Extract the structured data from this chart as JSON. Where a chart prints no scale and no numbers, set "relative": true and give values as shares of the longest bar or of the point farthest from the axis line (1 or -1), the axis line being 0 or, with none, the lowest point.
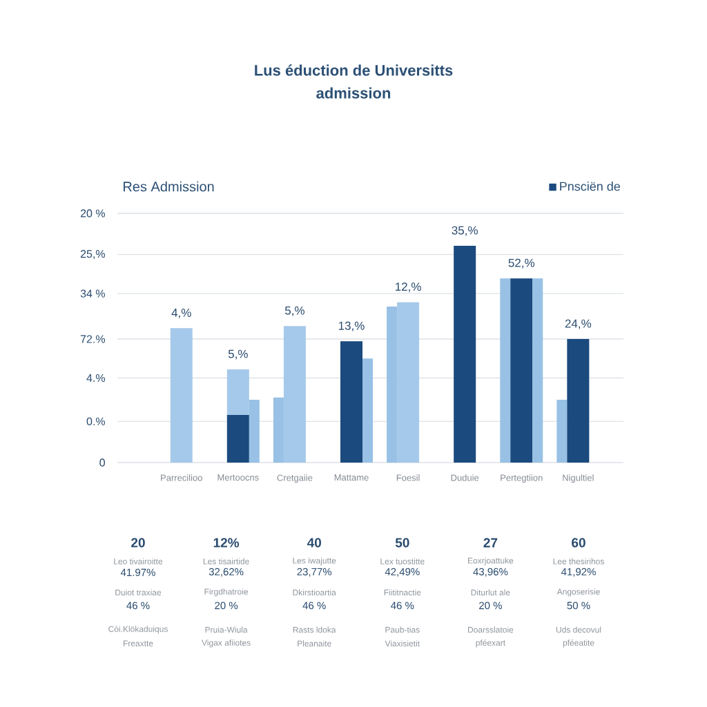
{
  "chart_data": {
    "type": "bar",
    "title": "Lus éduction de Universitts admission",
    "subtitle": "Res Admission",
    "relative": true,
    "categories": [
      "Parrecilioo",
      "Mertoocns",
      "Cretgaiie",
      "Mattame",
      "Foesil",
      "Duduie",
      "Pertegtiion",
      "Nigultiel"
    ],
    "series": [
      {
        "color": "#98c1e5",
        "values": [
          null,
          null,
          0.3,
          null,
          0.72,
          null,
          0.85,
          0.29
        ]
      },
      {
        "color": "#a5c9ea",
        "values": [
          0.62,
          0.43,
          0.63,
          null,
          0.74,
          null,
          null,
          null
        ]
      },
      {
        "name": "Pnsciën de",
        "color": "#1b4a7e",
        "values": [
          null,
          0.22,
          null,
          0.56,
          null,
          1,
          0.85,
          0.57
        ]
      },
      {
        "color": "#98c1e5",
        "values": [
          null,
          0.29,
          null,
          0.48,
          null,
          null,
          0.85,
          null
        ]
      }
    ],
    "ref_lines": [
      {
        "axis": "y",
        "value": 0,
        "color": "#dde1e7"
      },
      {
        "axis": "y",
        "value": 0.19,
        "color": "#dde1e7"
      },
      {
        "axis": "y",
        "value": 0.39,
        "color": "#dde1e7"
      },
      {
        "axis": "y",
        "value": 0.57,
        "color": "#dde1e7"
      },
      {
        "axis": "y",
        "value": 0.78,
        "color": "#dde1e7"
      },
      {
        "axis": "y",
        "value": 0.96,
        "color": "#dde1e7"
      },
      {
        "axis": "y",
        "value": 1.15,
        "color": "#dde1e7"
      }
    ],
    "legend": "top right",
    "annotations": [
      "0",
      "0.%",
      "4.%",
      "72.%",
      "34 %",
      "25,%",
      "20 %",
      {
        "text": "4,%",
        "x": "Parrecilioo",
        "y": 0.62
      },
      {
        "text": "5,%",
        "x": "Mertoocns",
        "y": 0.43
      },
      {
        "text": "5,%",
        "x": "Cretgaiie",
        "y": 0.63
      },
      {
        "text": "13,%",
        "x": "Mattame",
        "y": 0.56
      },
      {
        "text": "12,%",
        "x": "Foesil",
        "y": 0.74
      },
      {
        "text": "35,%",
        "x": "Duduie",
        "y": 1
      },
      {
        "text": "52,%",
        "x": "Pertegtiion",
        "y": 0.85
      },
      {
        "text": "24,%",
        "x": "Nigultiel",
        "y": 0.57
      },
      "20",
      "Leo tivairoitte",
      "41.97%",
      "Duiot traxiae",
      "46 %",
      "Còi.Klökaduiqus",
      "Freaxtte",
      "12%",
      "Les tisairtide",
      "32,62%",
      "Firgdhatroie",
      "20 %",
      "Pruia-Wiula",
      "Vigax afiiotes",
      "40",
      "Les iwajutte",
      "23,77%",
      "Dkirstioartia",
      "46 %",
      "Rasts ldoka",
      "Pleanaite",
      "50",
      "Lex tuostitte",
      "42,49%",
      "Fiititnactie",
      "46 %",
      "Paub-tias",
      "Viaxisietit",
      "27",
      "Eoxrjoattuke",
      "43,96%",
      "Diturlut ale",
      "20 %",
      "Doarsslatoie",
      "pféexart",
      "60",
      "Lee thesirihos",
      "41,92%",
      "Angoserisie",
      "50 %",
      "Uds decovul",
      "pféeatite"
    ]
  }
}
